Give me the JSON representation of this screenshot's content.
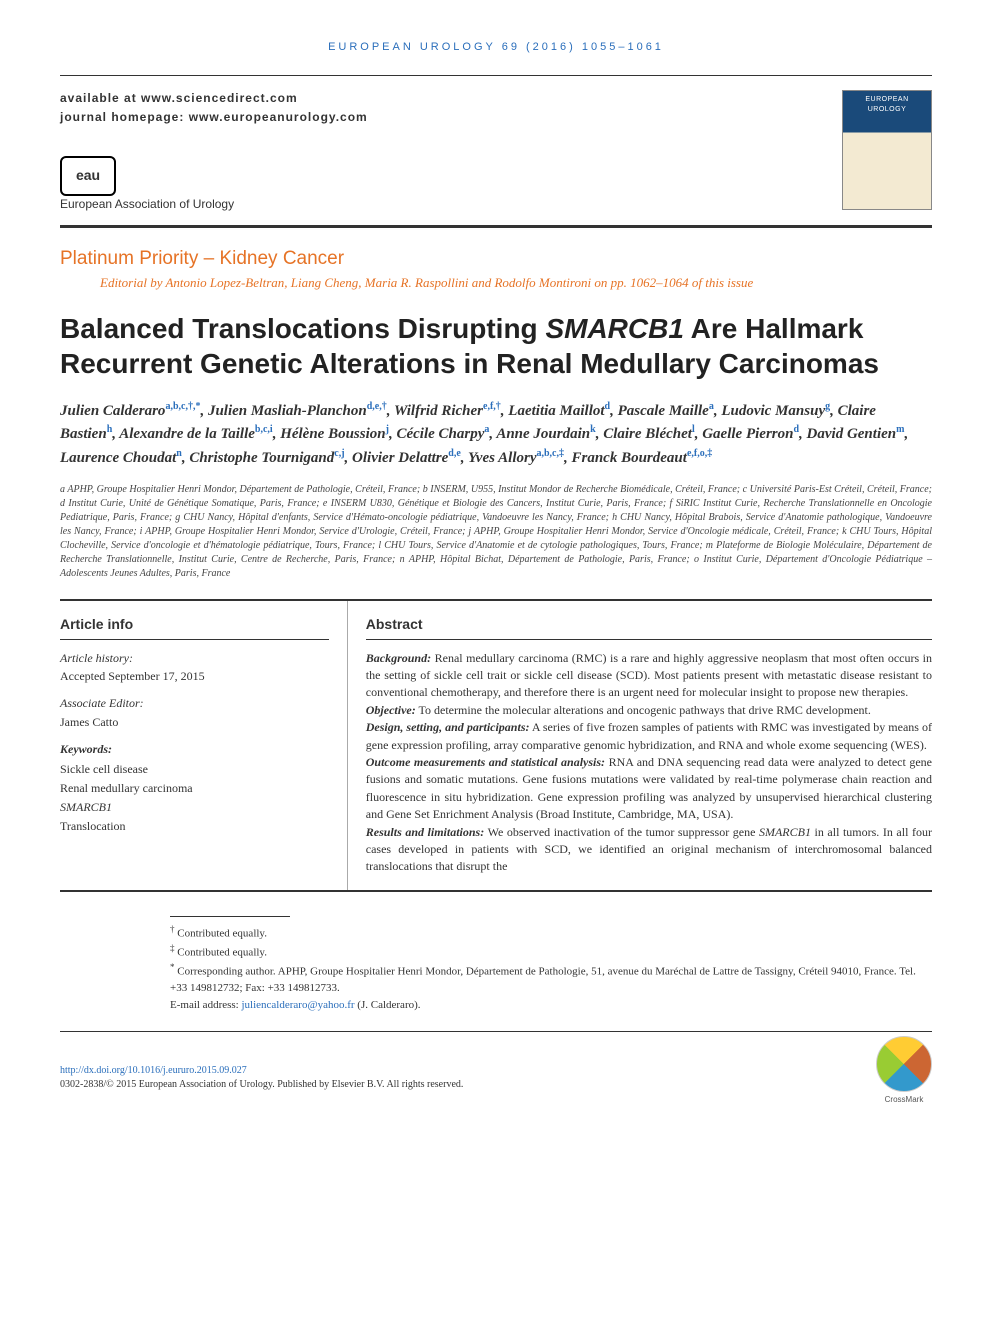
{
  "colors": {
    "accent_orange": "#e67326",
    "link_blue": "#2a6ebb",
    "text": "#333333",
    "rule": "#333333",
    "background": "#ffffff"
  },
  "typography": {
    "body_family": "Georgia, serif",
    "sans_family": "Arial, sans-serif",
    "title_size_pt": 28,
    "section_label_size_pt": 19,
    "authors_size_pt": 15,
    "body_size_pt": 12,
    "affil_size_pt": 10,
    "footnote_size_pt": 11
  },
  "running_head": "EUROPEAN UROLOGY 69 (2016) 1055–1061",
  "header": {
    "availability": "available at www.sciencedirect.com",
    "journal_home_label": "journal homepage:",
    "journal_home_url": "www.europeanurology.com",
    "eau_logo_text": "eau",
    "eau_name": "European Association of Urology"
  },
  "section": {
    "label": "Platinum Priority – Kidney Cancer",
    "editorial": "Editorial by Antonio Lopez-Beltran, Liang Cheng, Maria R. Raspollini and Rodolfo Montironi on pp. 1062–1064 of this issue"
  },
  "title": "Balanced Translocations Disrupting SMARCB1 Are Hallmark Recurrent Genetic Alterations in Renal Medullary Carcinomas",
  "authors": [
    {
      "name": "Julien Calderaro",
      "aff": "a,b,c,†,*"
    },
    {
      "name": "Julien Masliah-Planchon",
      "aff": "d,e,†"
    },
    {
      "name": "Wilfrid Richer",
      "aff": "e,f,†"
    },
    {
      "name": "Laetitia Maillot",
      "aff": "d"
    },
    {
      "name": "Pascale Maille",
      "aff": "a"
    },
    {
      "name": "Ludovic Mansuy",
      "aff": "g"
    },
    {
      "name": "Claire Bastien",
      "aff": "h"
    },
    {
      "name": "Alexandre de la Taille",
      "aff": "b,c,i"
    },
    {
      "name": "Hélène Boussion",
      "aff": "j"
    },
    {
      "name": "Cécile Charpy",
      "aff": "a"
    },
    {
      "name": "Anne Jourdain",
      "aff": "k"
    },
    {
      "name": "Claire Bléchet",
      "aff": "l"
    },
    {
      "name": "Gaelle Pierron",
      "aff": "d"
    },
    {
      "name": "David Gentien",
      "aff": "m"
    },
    {
      "name": "Laurence Choudat",
      "aff": "n"
    },
    {
      "name": "Christophe Tournigand",
      "aff": "c,j"
    },
    {
      "name": "Olivier Delattre",
      "aff": "d,e"
    },
    {
      "name": "Yves Allory",
      "aff": "a,b,c,‡"
    },
    {
      "name": "Franck Bourdeaut",
      "aff": "e,f,o,‡"
    }
  ],
  "affiliations": "a APHP, Groupe Hospitalier Henri Mondor, Département de Pathologie, Créteil, France; b INSERM, U955, Institut Mondor de Recherche Biomédicale, Créteil, France; c Université Paris-Est Créteil, Créteil, France; d Institut Curie, Unité de Génétique Somatique, Paris, France; e INSERM U830, Génétique et Biologie des Cancers, Institut Curie, Paris, France; f SiRIC Institut Curie, Recherche Translationnelle en Oncologie Pediatrique, Paris, France; g CHU Nancy, Hôpital d'enfants, Service d'Hémato-oncologie pédiatrique, Vandoeuvre les Nancy, France; h CHU Nancy, Hôpital Brabois, Service d'Anatomie pathologique, Vandoeuvre les Nancy, France; i APHP, Groupe Hospitalier Henri Mondor, Service d'Urologie, Créteil, France; j APHP, Groupe Hospitalier Henri Mondor, Service d'Oncologie médicale, Créteil, France; k CHU Tours, Hôpital Clocheville, Service d'oncologie et d'hématologie pédiatrique, Tours, France; l CHU Tours, Service d'Anatomie et de cytologie pathologiques, Tours, France; m Plateforme de Biologie Moléculaire, Département de Recherche Translationnelle, Institut Curie, Centre de Recherche, Paris, France; n APHP, Hôpital Bichat, Département de Pathologie, Paris, France; o Institut Curie, Département d'Oncologie Pédiatrique – Adolescents Jeunes Adultes, Paris, France",
  "article_info": {
    "heading": "Article info",
    "history_label": "Article history:",
    "history_value": "Accepted September 17, 2015",
    "assoc_editor_label": "Associate Editor:",
    "assoc_editor_value": "James Catto",
    "keywords_label": "Keywords:",
    "keywords": [
      "Sickle cell disease",
      "Renal medullary carcinoma",
      "SMARCB1",
      "Translocation"
    ]
  },
  "abstract": {
    "heading": "Abstract",
    "sections": [
      {
        "label": "Background:",
        "text": "Renal medullary carcinoma (RMC) is a rare and highly aggressive neoplasm that most often occurs in the setting of sickle cell trait or sickle cell disease (SCD). Most patients present with metastatic disease resistant to conventional chemotherapy, and therefore there is an urgent need for molecular insight to propose new therapies."
      },
      {
        "label": "Objective:",
        "text": "To determine the molecular alterations and oncogenic pathways that drive RMC development."
      },
      {
        "label": "Design, setting, and participants:",
        "text": "A series of five frozen samples of patients with RMC was investigated by means of gene expression profiling, array comparative genomic hybridization, and RNA and whole exome sequencing (WES)."
      },
      {
        "label": "Outcome measurements and statistical analysis:",
        "text": "RNA and DNA sequencing read data were analyzed to detect gene fusions and somatic mutations. Gene fusions mutations were validated by real-time polymerase chain reaction and fluorescence in situ hybridization. Gene expression profiling was analyzed by unsupervised hierarchical clustering and Gene Set Enrichment Analysis (Broad Institute, Cambridge, MA, USA)."
      },
      {
        "label": "Results and limitations:",
        "text": "We observed inactivation of the tumor suppressor gene SMARCB1 in all tumors. In all four cases developed in patients with SCD, we identified an original mechanism of interchromosomal balanced translocations that disrupt the"
      }
    ]
  },
  "footnotes": {
    "dagger": "Contributed equally.",
    "ddagger": "Contributed equally.",
    "corresponding": "Corresponding author. APHP, Groupe Hospitalier Henri Mondor, Département de Pathologie, 51, avenue du Maréchal de Lattre de Tassigny, Créteil 94010, France. Tel. +33 149812732; Fax: +33 149812733.",
    "email_label": "E-mail address:",
    "email": "juliencalderaro@yahoo.fr",
    "email_person": "(J. Calderaro)."
  },
  "doi": {
    "url": "http://dx.doi.org/10.1016/j.eururo.2015.09.027",
    "issn_line": "0302-2838/© 2015 European Association of Urology. Published by Elsevier B.V. All rights reserved.",
    "crossmark_label": "CrossMark"
  }
}
